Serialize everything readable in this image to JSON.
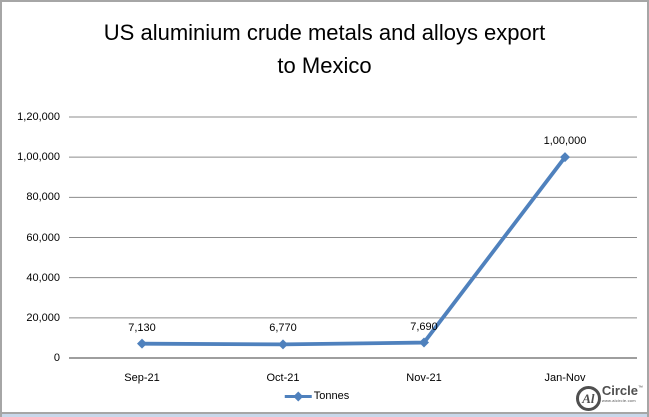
{
  "title_lines": [
    "US aluminium crude metals and alloys export",
    "to Mexico"
  ],
  "chart_data": {
    "type": "line",
    "title": "US aluminium crude metals and alloys export to Mexico",
    "categories": [
      "Sep-21",
      "Oct-21",
      "Nov-21",
      "Jan-Nov"
    ],
    "series": [
      {
        "name": "Tonnes",
        "values": [
          7130,
          6770,
          7690,
          100000
        ],
        "point_labels": [
          "7,130",
          "6,770",
          "7,690",
          "1,00,000"
        ]
      }
    ],
    "ylim": [
      0,
      120000
    ],
    "y_ticks": [
      {
        "value": 120000,
        "label": "1,20,000"
      },
      {
        "value": 100000,
        "label": "1,00,000"
      },
      {
        "value": 80000,
        "label": "80,000"
      },
      {
        "value": 60000,
        "label": "60,000"
      },
      {
        "value": 40000,
        "label": "40,000"
      },
      {
        "value": 20000,
        "label": "20,000"
      },
      {
        "value": 0,
        "label": "0"
      }
    ],
    "grid": true,
    "legend_position": "bottom",
    "xlabel": "",
    "ylabel": "",
    "colors": {
      "line": "#4F81BD",
      "marker": "#4F81BD",
      "gridline": "#8C8C8C",
      "axis": "#7F7F7F",
      "text": "#000000",
      "frame_border": "#A6A6A6",
      "bottom_strip": "#C9D7EA",
      "logo_gray": "#4F4F4F"
    }
  },
  "legend": {
    "label": "Tonnes"
  },
  "logo": {
    "circle_text": "Al",
    "name": "Circle",
    "trademark": "™",
    "url": "www.alcircle.com"
  }
}
